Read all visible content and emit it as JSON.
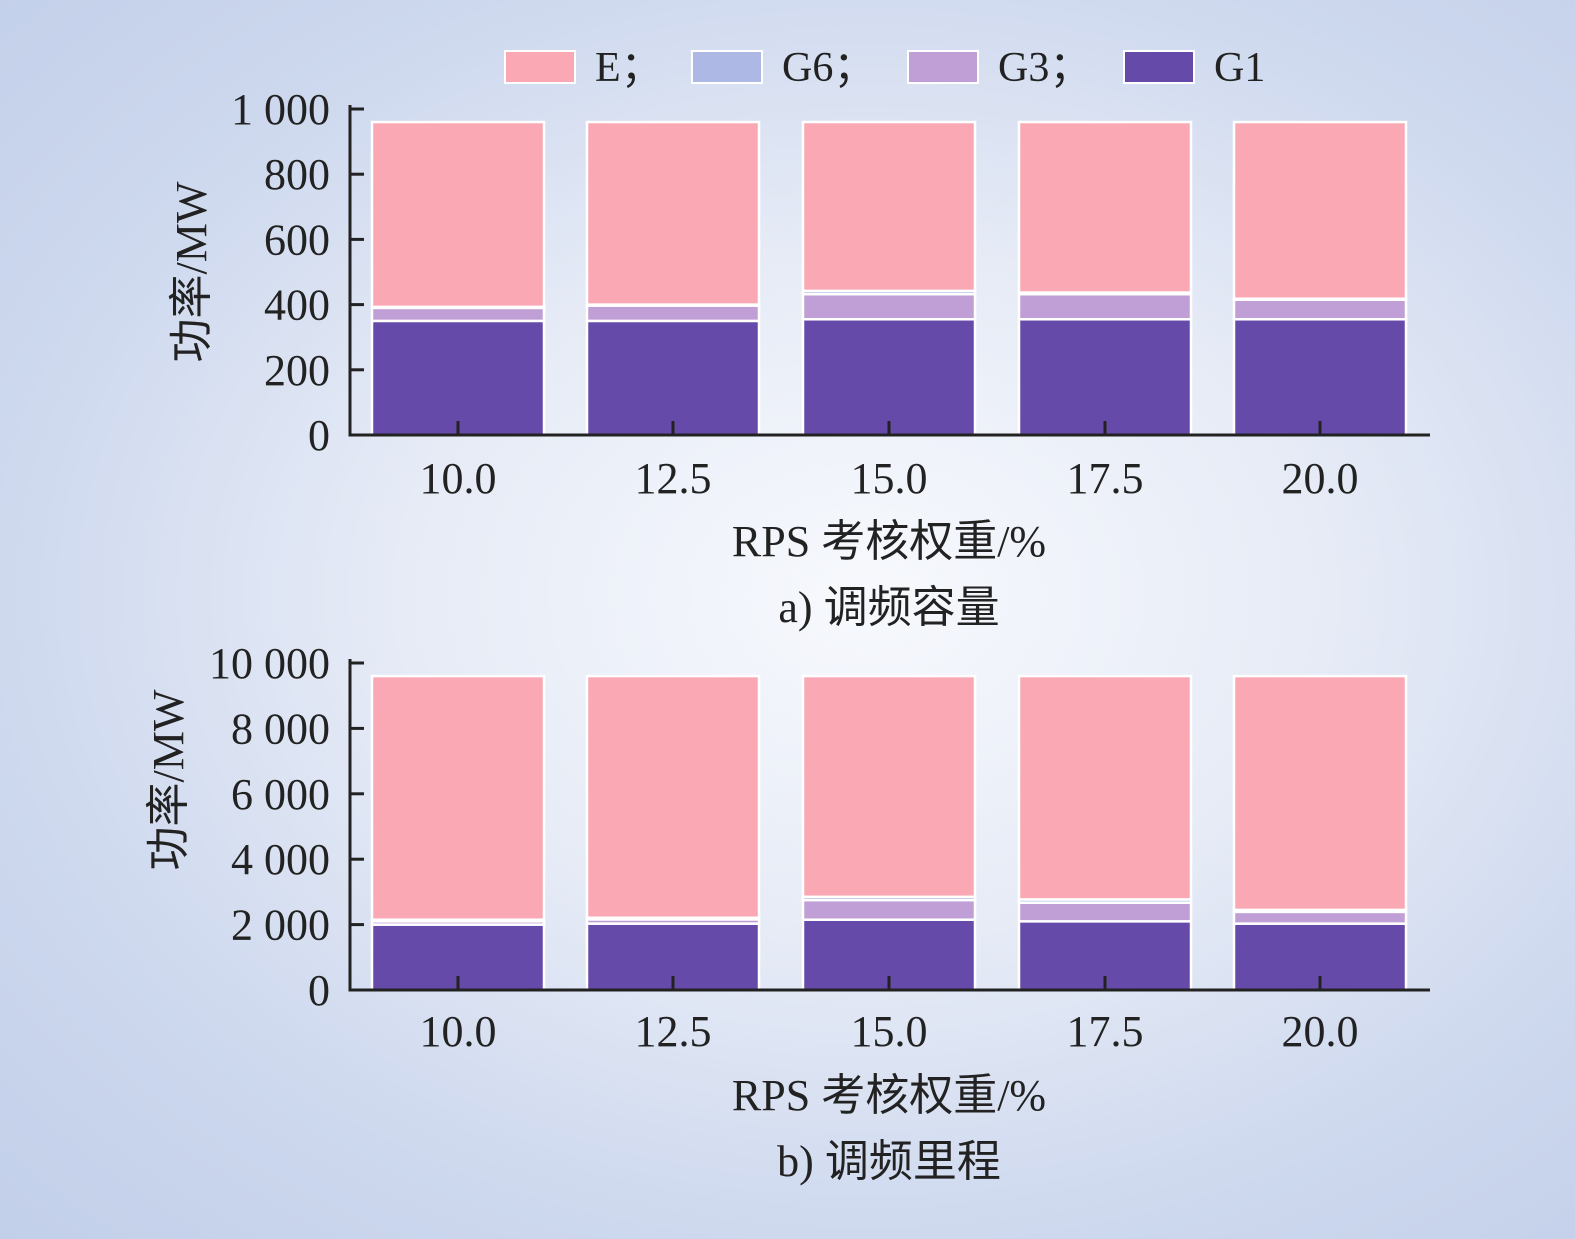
{
  "colors": {
    "E": "#f9a8b4",
    "G6": "#aeb8e4",
    "G3": "#bf9fd5",
    "G1": "#664aa9",
    "axis": "#222222",
    "bar_edge": "#ffffff"
  },
  "legend": [
    {
      "key": "E",
      "label": "E；"
    },
    {
      "key": "G6",
      "label": "G6；"
    },
    {
      "key": "G3",
      "label": "G3；"
    },
    {
      "key": "G1",
      "label": "G1"
    }
  ],
  "chart_data": [
    {
      "type": "bar",
      "stacked": true,
      "title": "a) 调频容量",
      "xlabel": "RPS 考核权重/%",
      "ylabel": "功率/MW",
      "categories": [
        "10.0",
        "12.5",
        "15.0",
        "17.5",
        "20.0"
      ],
      "ylim": [
        0,
        1000
      ],
      "yticks": [
        0,
        200,
        400,
        600,
        800,
        1000
      ],
      "ytick_labels": [
        "0",
        "200",
        "400",
        "600",
        "800",
        "1 000"
      ],
      "series": [
        {
          "name": "G1",
          "values": [
            350,
            350,
            355,
            355,
            355
          ]
        },
        {
          "name": "G3",
          "values": [
            40,
            47,
            77,
            77,
            60
          ]
        },
        {
          "name": "G6",
          "values": [
            3,
            3,
            10,
            5,
            3
          ]
        },
        {
          "name": "E",
          "values": [
            567,
            560,
            518,
            523,
            542
          ]
        }
      ]
    },
    {
      "type": "bar",
      "stacked": true,
      "title": "b) 调频里程",
      "xlabel": "RPS 考核权重/%",
      "ylabel": "功率/MW",
      "categories": [
        "10.0",
        "12.5",
        "15.0",
        "17.5",
        "20.0"
      ],
      "ylim": [
        0,
        10000
      ],
      "yticks": [
        0,
        2000,
        4000,
        6000,
        8000,
        10000
      ],
      "ytick_labels": [
        "0",
        "2 000",
        "4 000",
        "6 000",
        "8 000",
        "10 000"
      ],
      "series": [
        {
          "name": "G1",
          "values": [
            2000,
            2030,
            2150,
            2100,
            2030
          ]
        },
        {
          "name": "G3",
          "values": [
            100,
            130,
            600,
            570,
            360
          ]
        },
        {
          "name": "G6",
          "values": [
            50,
            50,
            100,
            100,
            60
          ]
        },
        {
          "name": "E",
          "values": [
            7450,
            7390,
            6750,
            6830,
            7150
          ]
        }
      ]
    }
  ]
}
